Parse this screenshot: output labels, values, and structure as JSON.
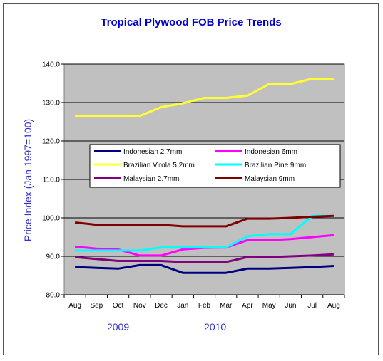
{
  "colors": {
    "title": "#0000CC",
    "ylabel": "#3333CC",
    "year_labels": "#3333CC",
    "plot_bg": "#C0C0C0",
    "grid": "#000000"
  },
  "chart_data": {
    "type": "line",
    "title": "Tropical Plywood FOB Price Trends",
    "xlabel": "",
    "ylabel": "Price Index (Jan 1997=100)",
    "categories": [
      "Aug",
      "Sep",
      "Oct",
      "Nov",
      "Dec",
      "Jan",
      "Feb",
      "Mar",
      "Apr",
      "May",
      "Jun",
      "Jul",
      "Aug"
    ],
    "year_labels": [
      {
        "text": "2009",
        "category_index": 2
      },
      {
        "text": "2010",
        "category_index": 6.5
      }
    ],
    "ylim": [
      80,
      140
    ],
    "yticks": [
      80,
      90,
      100,
      110,
      120,
      130,
      140
    ],
    "ytick_labels": [
      "80.0",
      "90.0",
      "100.0",
      "110.0",
      "120.0",
      "130.0",
      "140.0"
    ],
    "grid": true,
    "legend_placement": "center-left",
    "series": [
      {
        "name": "Indonesian 2.7mm",
        "color": "#000080",
        "values": [
          87.2,
          87.0,
          86.8,
          87.7,
          87.7,
          85.7,
          85.7,
          85.7,
          86.8,
          86.8,
          87.0,
          87.2,
          87.5
        ]
      },
      {
        "name": "Indonesian 6mm",
        "color": "#FF00FF",
        "values": [
          92.5,
          92.0,
          91.8,
          90.2,
          90.2,
          91.8,
          92.2,
          92.3,
          94.2,
          94.2,
          94.5,
          95.0,
          95.5
        ]
      },
      {
        "name": "Brazilian Virola 5.2mm",
        "color": "#FFFF33",
        "values": [
          126.5,
          126.5,
          126.5,
          126.5,
          128.8,
          129.8,
          131.2,
          131.2,
          131.8,
          134.8,
          134.8,
          136.2,
          136.2
        ]
      },
      {
        "name": "Brazilian Pine 9mm",
        "color": "#00FFFF",
        "values": [
          91.5,
          91.5,
          91.5,
          91.5,
          92.3,
          92.3,
          92.3,
          92.3,
          95.2,
          95.8,
          95.8,
          100.5,
          100.5
        ]
      },
      {
        "name": "Malaysian 2.7mm",
        "color": "#800080",
        "values": [
          89.8,
          89.3,
          88.8,
          88.8,
          88.8,
          88.5,
          88.5,
          88.5,
          89.8,
          89.8,
          90.0,
          90.2,
          90.5
        ]
      },
      {
        "name": "Malaysian 9mm",
        "color": "#800000",
        "values": [
          98.8,
          98.2,
          98.2,
          98.2,
          98.2,
          97.8,
          97.8,
          97.8,
          99.8,
          99.8,
          100.0,
          100.3,
          100.5
        ]
      }
    ]
  }
}
